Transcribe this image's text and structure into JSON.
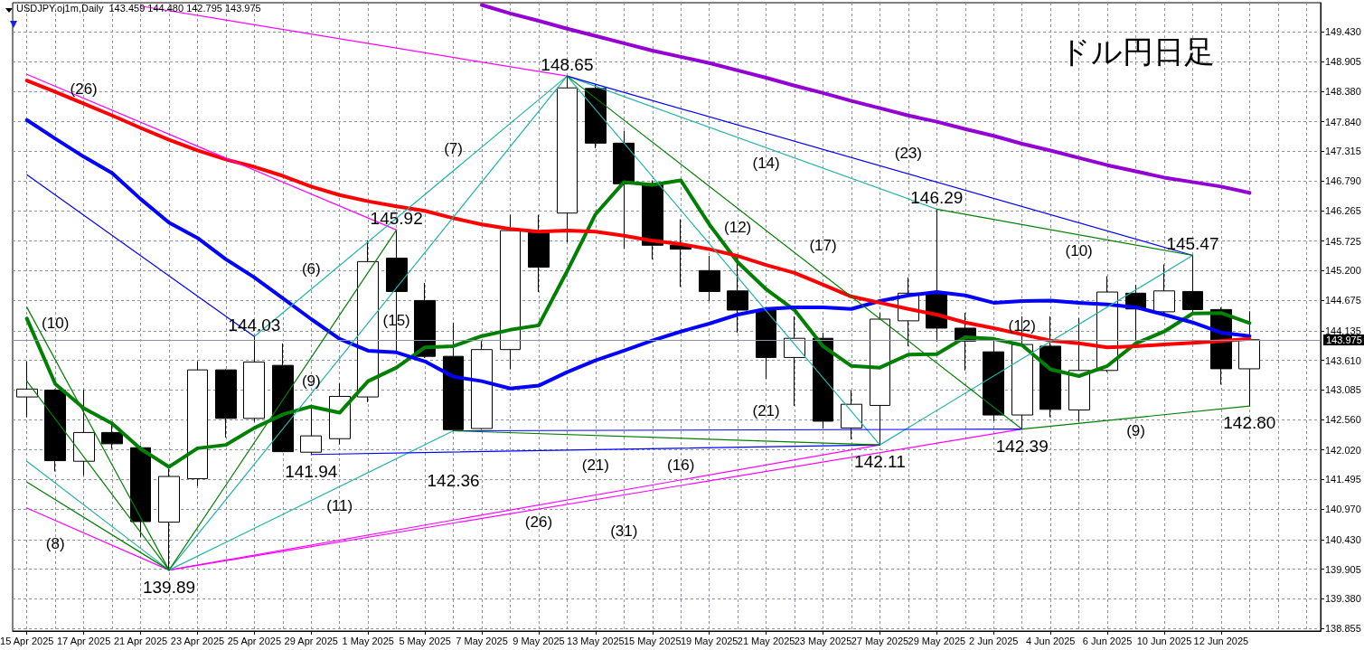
{
  "chart_data": {
    "type": "candlestick",
    "title": "ドル円日足",
    "subtitle": "USDJPY.oj1m,Daily  143.459 144.480 142.795 143.975",
    "categories": [
      "15 Apr 2025",
      null,
      "17 Apr 2025",
      null,
      "21 Apr 2025",
      null,
      "23 Apr 2025",
      null,
      "25 Apr 2025",
      null,
      "29 Apr 2025",
      null,
      "1 May 2025",
      null,
      "5 May 2025",
      null,
      "7 May 2025",
      null,
      "9 May 2025",
      null,
      "13 May 2025",
      null,
      "15 May 2025",
      null,
      "19 May 2025",
      null,
      "21 May 2025",
      null,
      "23 May 2025",
      null,
      "27 May 2025",
      null,
      "29 May 2025",
      null,
      "2 Jun 2025",
      null,
      "4 Jun 2025",
      null,
      "6 Jun 2025",
      null,
      "10 Jun 2025",
      null,
      "12 Jun 2025",
      null
    ],
    "series": [
      {
        "color": "#000000",
        "ohlc": [
          [
            142.96,
            143.59,
            142.6,
            143.1
          ],
          [
            143.08,
            143.1,
            141.64,
            141.83
          ],
          [
            141.82,
            143.09,
            141.57,
            142.33
          ],
          [
            142.33,
            142.49,
            142.04,
            142.13
          ],
          [
            142.06,
            142.1,
            140.47,
            140.75
          ],
          [
            140.74,
            141.69,
            139.89,
            141.55
          ],
          [
            141.51,
            143.59,
            141.38,
            143.44
          ],
          [
            143.44,
            143.45,
            142.24,
            142.58
          ],
          [
            142.58,
            144.03,
            142.52,
            143.58
          ],
          [
            143.52,
            143.91,
            141.98,
            141.99
          ],
          [
            141.98,
            142.76,
            141.94,
            142.27
          ],
          [
            142.22,
            143.2,
            142.12,
            142.97
          ],
          [
            142.96,
            145.74,
            142.87,
            145.36
          ],
          [
            145.42,
            145.92,
            143.78,
            144.83
          ],
          [
            144.67,
            144.98,
            143.65,
            143.68
          ],
          [
            143.68,
            144.28,
            142.36,
            142.38
          ],
          [
            142.4,
            143.95,
            142.38,
            143.8
          ],
          [
            143.8,
            146.19,
            143.45,
            145.91
          ],
          [
            145.87,
            146.19,
            144.82,
            145.26
          ],
          [
            146.22,
            148.65,
            145.7,
            148.44
          ],
          [
            148.43,
            148.5,
            147.37,
            147.46
          ],
          [
            147.46,
            147.68,
            145.59,
            146.74
          ],
          [
            146.74,
            146.8,
            145.4,
            145.65
          ],
          [
            145.65,
            146.11,
            144.91,
            145.58
          ],
          [
            145.2,
            145.46,
            144.66,
            144.83
          ],
          [
            144.84,
            145.46,
            144.1,
            144.5
          ],
          [
            144.5,
            144.5,
            143.28,
            143.66
          ],
          [
            143.66,
            144.39,
            142.8,
            144.0
          ],
          [
            144.0,
            144.1,
            142.4,
            142.53
          ],
          [
            142.41,
            143.08,
            142.21,
            142.83
          ],
          [
            142.81,
            144.45,
            142.11,
            144.34
          ],
          [
            144.31,
            145.08,
            143.86,
            144.8
          ],
          [
            144.79,
            146.29,
            143.94,
            144.18
          ],
          [
            144.18,
            144.45,
            143.43,
            143.95
          ],
          [
            143.76,
            144.02,
            142.53,
            142.64
          ],
          [
            142.64,
            144.39,
            142.39,
            143.89
          ],
          [
            143.86,
            144.39,
            142.6,
            142.74
          ],
          [
            142.73,
            144.36,
            142.52,
            143.43
          ],
          [
            143.43,
            145.1,
            143.4,
            144.82
          ],
          [
            144.8,
            144.95,
            143.96,
            144.52
          ],
          [
            144.47,
            145.31,
            144.4,
            144.84
          ],
          [
            144.83,
            145.47,
            144.45,
            144.51
          ],
          [
            144.51,
            144.55,
            143.18,
            143.46
          ],
          [
            143.459,
            144.48,
            142.795,
            143.975
          ]
        ],
        "value_labels": [
          null,
          null,
          null,
          null,
          null,
          "139.89",
          null,
          null,
          "144.03",
          null,
          "141.94",
          null,
          null,
          "145.92",
          null,
          "142.36",
          null,
          null,
          null,
          "148.65",
          null,
          null,
          null,
          null,
          null,
          null,
          null,
          null,
          null,
          null,
          "142.11",
          null,
          "146.29",
          null,
          null,
          "142.39",
          null,
          null,
          null,
          null,
          null,
          "145.47",
          null,
          "142.80"
        ]
      },
      {
        "type": "line",
        "color": "#008000",
        "values": [
          144.35,
          143.19,
          142.76,
          142.49,
          142.04,
          141.72,
          142.05,
          142.11,
          142.41,
          142.65,
          142.79,
          142.68,
          143.24,
          143.48,
          143.84,
          143.86,
          144.04,
          144.15,
          144.23,
          145.19,
          146.2,
          146.77,
          146.72,
          146.8,
          146.02,
          145.35,
          144.87,
          144.5,
          143.86,
          143.51,
          143.48,
          143.71,
          143.72,
          144.02,
          143.99,
          143.88,
          143.45,
          143.33,
          143.51,
          143.91,
          144.12,
          144.44,
          144.45,
          144.27
        ]
      },
      {
        "type": "line",
        "color": "#0000ff",
        "values": [
          147.87,
          147.54,
          147.22,
          146.93,
          146.47,
          146.05,
          145.78,
          145.4,
          145.08,
          144.71,
          144.34,
          143.99,
          143.78,
          143.75,
          143.59,
          143.32,
          143.24,
          143.11,
          143.16,
          143.4,
          143.61,
          143.78,
          143.96,
          144.12,
          144.26,
          144.42,
          144.52,
          144.55,
          144.55,
          144.52,
          144.66,
          144.76,
          144.82,
          144.76,
          144.63,
          144.66,
          144.67,
          144.63,
          144.6,
          144.55,
          144.42,
          144.28,
          144.1,
          144.04
        ]
      },
      {
        "type": "line",
        "color": "#ff0000",
        "values": [
          148.57,
          148.37,
          148.16,
          147.95,
          147.73,
          147.52,
          147.33,
          147.17,
          147.04,
          146.88,
          146.69,
          146.54,
          146.43,
          146.34,
          146.26,
          146.13,
          146.02,
          145.94,
          145.89,
          145.91,
          145.89,
          145.82,
          145.73,
          145.67,
          145.58,
          145.46,
          145.3,
          145.16,
          144.95,
          144.74,
          144.63,
          144.52,
          144.42,
          144.28,
          144.18,
          144.07,
          143.96,
          143.91,
          143.84,
          143.86,
          143.89,
          143.92,
          143.95,
          143.99
        ]
      },
      {
        "type": "line",
        "color": "#9400d3",
        "values": [
          null,
          null,
          null,
          null,
          null,
          null,
          null,
          null,
          null,
          null,
          null,
          null,
          null,
          null,
          null,
          null,
          149.91,
          149.76,
          149.63,
          149.49,
          149.36,
          149.23,
          149.1,
          148.99,
          148.88,
          148.75,
          148.62,
          148.48,
          148.35,
          148.21,
          148.08,
          147.95,
          147.84,
          147.71,
          147.59,
          147.45,
          147.33,
          147.2,
          147.07,
          146.96,
          146.85,
          146.77,
          146.69,
          146.58
        ]
      },
      {
        "type": "line",
        "color": "#ff00ff",
        "values": [
          null,
          null,
          null,
          null,
          149.89,
          null,
          null,
          null,
          null,
          null,
          null,
          null,
          null,
          null,
          null,
          null,
          null,
          null,
          null,
          148.65,
          null,
          null,
          null,
          null,
          null,
          null,
          null,
          null,
          null,
          null,
          null,
          null,
          null,
          null,
          null,
          null,
          null,
          null,
          null,
          null,
          null,
          null,
          null,
          null
        ]
      },
      {
        "type": "line",
        "color": "#ff00ff",
        "values": [
          148.68,
          null,
          null,
          null,
          null,
          null,
          null,
          null,
          null,
          null,
          null,
          null,
          null,
          145.92,
          null,
          null,
          null,
          null,
          null,
          null,
          null,
          null,
          null,
          null,
          null,
          null,
          null,
          null,
          null,
          null,
          null,
          null,
          null,
          null,
          null,
          null,
          null,
          null,
          null,
          null,
          null,
          null,
          null,
          null
        ]
      },
      {
        "type": "line",
        "color": "#ff00ff",
        "values": [
          140.99,
          null,
          null,
          null,
          null,
          139.89,
          null,
          null,
          null,
          null,
          null,
          null,
          null,
          null,
          null,
          null,
          null,
          null,
          null,
          null,
          null,
          null,
          null,
          null,
          null,
          null,
          null,
          null,
          null,
          null,
          null,
          null,
          null,
          null,
          null,
          null,
          null,
          null,
          null,
          null,
          null,
          null,
          null,
          null
        ]
      },
      {
        "type": "line",
        "color": "#ff00ff",
        "values": [
          null,
          null,
          null,
          null,
          null,
          139.89,
          null,
          null,
          null,
          null,
          null,
          null,
          null,
          null,
          null,
          null,
          null,
          null,
          null,
          null,
          null,
          null,
          null,
          null,
          null,
          null,
          null,
          null,
          null,
          null,
          142.11,
          null,
          null,
          null,
          null,
          null,
          null,
          null,
          null,
          null,
          null,
          null,
          null,
          null
        ]
      },
      {
        "type": "line",
        "color": "#ff00ff",
        "values": [
          null,
          null,
          null,
          null,
          null,
          139.89,
          null,
          null,
          null,
          null,
          null,
          null,
          null,
          null,
          null,
          null,
          null,
          null,
          null,
          null,
          null,
          null,
          null,
          null,
          null,
          null,
          null,
          null,
          null,
          null,
          null,
          null,
          null,
          null,
          null,
          142.39,
          null,
          null,
          null,
          null,
          null,
          null,
          null,
          null
        ]
      },
      {
        "type": "line",
        "color": "#20b2aa",
        "values": [
          141.82,
          null,
          null,
          null,
          null,
          139.89,
          null,
          null,
          null,
          null,
          null,
          null,
          null,
          null,
          null,
          null,
          null,
          null,
          null,
          null,
          null,
          null,
          null,
          null,
          null,
          null,
          null,
          null,
          null,
          null,
          null,
          null,
          null,
          null,
          null,
          null,
          null,
          null,
          null,
          null,
          null,
          null,
          null,
          null
        ]
      },
      {
        "type": "line",
        "color": "#20b2aa",
        "values": [
          null,
          null,
          null,
          null,
          null,
          139.89,
          null,
          null,
          null,
          null,
          null,
          null,
          null,
          null,
          null,
          null,
          null,
          null,
          null,
          148.65,
          null,
          null,
          null,
          null,
          null,
          null,
          null,
          null,
          null,
          null,
          null,
          null,
          null,
          null,
          null,
          null,
          null,
          null,
          null,
          null,
          null,
          null,
          null,
          null
        ]
      },
      {
        "type": "line",
        "color": "#20b2aa",
        "values": [
          null,
          null,
          null,
          null,
          null,
          139.89,
          null,
          null,
          null,
          null,
          null,
          null,
          null,
          null,
          null,
          142.36,
          null,
          null,
          null,
          null,
          null,
          null,
          null,
          null,
          null,
          null,
          null,
          null,
          null,
          null,
          null,
          null,
          null,
          null,
          null,
          null,
          null,
          null,
          null,
          null,
          null,
          null,
          null,
          null
        ]
      },
      {
        "type": "line",
        "color": "#20b2aa",
        "values": [
          null,
          null,
          null,
          null,
          null,
          null,
          null,
          null,
          144.03,
          null,
          null,
          null,
          null,
          null,
          null,
          null,
          null,
          null,
          null,
          148.65,
          null,
          null,
          null,
          null,
          null,
          null,
          null,
          null,
          null,
          null,
          null,
          null,
          null,
          null,
          null,
          null,
          null,
          null,
          null,
          null,
          null,
          null,
          null,
          null
        ]
      },
      {
        "type": "line",
        "color": "#20b2aa",
        "values": [
          null,
          null,
          null,
          null,
          null,
          null,
          null,
          null,
          null,
          null,
          null,
          null,
          null,
          null,
          null,
          null,
          null,
          null,
          null,
          148.65,
          null,
          null,
          null,
          null,
          null,
          null,
          null,
          null,
          null,
          null,
          142.11,
          null,
          null,
          null,
          null,
          null,
          null,
          null,
          null,
          null,
          null,
          null,
          null,
          null
        ]
      },
      {
        "type": "line",
        "color": "#20b2aa",
        "values": [
          null,
          null,
          null,
          null,
          null,
          null,
          null,
          null,
          null,
          null,
          null,
          null,
          null,
          null,
          null,
          null,
          null,
          null,
          null,
          148.65,
          null,
          null,
          null,
          null,
          null,
          null,
          null,
          null,
          null,
          null,
          null,
          null,
          146.29,
          null,
          null,
          null,
          null,
          null,
          null,
          null,
          null,
          null,
          null,
          null
        ]
      },
      {
        "type": "line",
        "color": "#20b2aa",
        "values": [
          null,
          null,
          null,
          null,
          null,
          null,
          null,
          null,
          null,
          null,
          null,
          null,
          null,
          null,
          null,
          null,
          null,
          null,
          null,
          null,
          null,
          null,
          null,
          null,
          null,
          null,
          null,
          null,
          null,
          null,
          142.11,
          null,
          null,
          null,
          null,
          null,
          null,
          null,
          null,
          null,
          null,
          145.47,
          null,
          null
        ]
      },
      {
        "type": "line",
        "color": "#0000ff",
        "values": [
          146.9,
          null,
          null,
          null,
          null,
          null,
          null,
          null,
          144.03,
          null,
          null,
          null,
          null,
          null,
          null,
          null,
          null,
          null,
          null,
          null,
          null,
          null,
          null,
          null,
          null,
          null,
          null,
          null,
          null,
          null,
          null,
          null,
          null,
          null,
          null,
          null,
          null,
          null,
          null,
          null,
          null,
          null,
          null,
          null
        ]
      },
      {
        "type": "line",
        "color": "#0000ff",
        "values": [
          null,
          null,
          null,
          null,
          null,
          null,
          null,
          null,
          null,
          null,
          null,
          null,
          null,
          null,
          null,
          null,
          null,
          null,
          null,
          148.65,
          null,
          null,
          null,
          null,
          null,
          null,
          null,
          null,
          null,
          null,
          null,
          null,
          null,
          null,
          null,
          null,
          null,
          null,
          null,
          null,
          null,
          145.47,
          null,
          null
        ]
      },
      {
        "type": "line",
        "color": "#0000ff",
        "values": [
          null,
          null,
          null,
          null,
          null,
          null,
          null,
          null,
          null,
          null,
          141.94,
          null,
          null,
          null,
          null,
          null,
          null,
          null,
          null,
          null,
          null,
          null,
          null,
          null,
          null,
          null,
          null,
          null,
          null,
          null,
          142.11,
          null,
          null,
          null,
          null,
          null,
          null,
          null,
          null,
          null,
          null,
          null,
          null,
          null
        ]
      },
      {
        "type": "line",
        "color": "#0000ff",
        "values": [
          null,
          null,
          null,
          null,
          null,
          null,
          null,
          null,
          null,
          null,
          null,
          null,
          null,
          null,
          null,
          142.36,
          null,
          null,
          null,
          null,
          null,
          null,
          null,
          null,
          null,
          null,
          null,
          null,
          null,
          null,
          null,
          null,
          null,
          null,
          null,
          142.39,
          null,
          null,
          null,
          null,
          null,
          null,
          null,
          null
        ]
      },
      {
        "type": "line",
        "color": "#008000",
        "values": [
          144.55,
          null,
          null,
          null,
          null,
          139.89,
          null,
          null,
          null,
          null,
          null,
          null,
          null,
          null,
          null,
          null,
          null,
          null,
          null,
          null,
          null,
          null,
          null,
          null,
          null,
          null,
          null,
          null,
          null,
          null,
          null,
          null,
          null,
          null,
          null,
          null,
          null,
          null,
          null,
          null,
          null,
          null,
          null,
          null
        ]
      },
      {
        "type": "line",
        "color": "#008000",
        "values": [
          143.24,
          null,
          null,
          null,
          null,
          139.89,
          null,
          null,
          null,
          null,
          null,
          null,
          null,
          null,
          null,
          null,
          null,
          null,
          null,
          null,
          null,
          null,
          null,
          null,
          null,
          null,
          null,
          null,
          null,
          null,
          null,
          null,
          null,
          null,
          null,
          null,
          null,
          null,
          null,
          null,
          null,
          null,
          null,
          null
        ]
      },
      {
        "type": "line",
        "color": "#008000",
        "values": [
          141.45,
          null,
          null,
          null,
          null,
          139.89,
          null,
          null,
          null,
          null,
          null,
          null,
          null,
          null,
          null,
          null,
          null,
          null,
          null,
          null,
          null,
          null,
          null,
          null,
          null,
          null,
          null,
          null,
          null,
          null,
          null,
          null,
          null,
          null,
          null,
          null,
          null,
          null,
          null,
          null,
          null,
          null,
          null,
          null
        ]
      },
      {
        "type": "line",
        "color": "#008000",
        "values": [
          null,
          null,
          null,
          null,
          null,
          139.89,
          null,
          null,
          null,
          null,
          null,
          null,
          null,
          145.92,
          null,
          null,
          null,
          null,
          null,
          null,
          null,
          null,
          null,
          null,
          null,
          null,
          null,
          null,
          null,
          null,
          null,
          null,
          null,
          null,
          null,
          null,
          null,
          null,
          null,
          null,
          null,
          null,
          null,
          null
        ]
      },
      {
        "type": "line",
        "color": "#008000",
        "values": [
          null,
          null,
          null,
          null,
          null,
          null,
          null,
          null,
          null,
          null,
          null,
          null,
          null,
          null,
          null,
          null,
          null,
          null,
          null,
          148.65,
          null,
          null,
          null,
          null,
          null,
          null,
          null,
          null,
          null,
          null,
          null,
          null,
          null,
          null,
          null,
          142.39,
          null,
          null,
          null,
          null,
          null,
          null,
          null,
          null
        ]
      },
      {
        "type": "line",
        "color": "#008000",
        "values": [
          null,
          null,
          null,
          null,
          null,
          null,
          null,
          null,
          null,
          null,
          null,
          null,
          null,
          null,
          null,
          null,
          null,
          null,
          null,
          null,
          null,
          null,
          null,
          null,
          null,
          null,
          null,
          null,
          null,
          null,
          null,
          null,
          146.29,
          null,
          null,
          null,
          null,
          null,
          null,
          null,
          null,
          145.47,
          null,
          null
        ]
      },
      {
        "type": "line",
        "color": "#008000",
        "values": [
          null,
          null,
          null,
          null,
          null,
          null,
          null,
          null,
          null,
          null,
          null,
          null,
          null,
          null,
          null,
          142.36,
          null,
          null,
          null,
          null,
          null,
          null,
          null,
          null,
          null,
          null,
          null,
          null,
          null,
          null,
          142.11,
          null,
          null,
          null,
          null,
          null,
          null,
          null,
          null,
          null,
          null,
          null,
          null,
          null
        ]
      },
      {
        "type": "line",
        "color": "#008000",
        "values": [
          null,
          null,
          null,
          null,
          null,
          null,
          null,
          null,
          null,
          null,
          null,
          null,
          null,
          null,
          null,
          null,
          null,
          null,
          null,
          null,
          null,
          null,
          null,
          null,
          null,
          null,
          null,
          null,
          null,
          null,
          null,
          null,
          null,
          null,
          null,
          142.39,
          null,
          null,
          null,
          null,
          null,
          null,
          null,
          142.8
        ]
      }
    ],
    "ylim": [
      138.81,
      149.95
    ],
    "yticks": [
      138.855,
      {
        "value": 139.38,
        "label": "139.380"
      },
      139.905,
      {
        "value": 140.43,
        "label": "140.430"
      },
      {
        "value": 140.97,
        "label": "140.970"
      },
      141.495,
      {
        "value": 142.02,
        "label": "142.020"
      },
      {
        "value": 142.56,
        "label": "142.560"
      },
      143.085,
      {
        "value": 143.61,
        "label": "143.610"
      },
      144.135,
      144.675,
      {
        "value": 145.2,
        "label": "145.200"
      },
      145.725,
      146.265,
      {
        "value": 146.79,
        "label": "146.790"
      },
      147.315,
      {
        "value": 147.84,
        "label": "147.840"
      },
      {
        "value": 148.38,
        "label": "148.380"
      },
      148.905,
      {
        "value": 149.43,
        "label": "149.430"
      }
    ],
    "ref_lines": [
      {
        "axis": "y",
        "value": 143.975,
        "label": "143.975",
        "color": "#8b95a1"
      }
    ],
    "annotations": [
      "(10)",
      "(26)",
      "(8)",
      "(7)",
      "(6)",
      "(15)",
      "(9)",
      "(11)",
      "(14)",
      "(12)",
      "(17)",
      "(23)",
      "(21)",
      "(21)",
      "(16)",
      "(26)",
      "(31)",
      "(12)",
      "(10)",
      "(9)"
    ],
    "grid": true,
    "marker": "none",
    "line_style": "solid"
  }
}
